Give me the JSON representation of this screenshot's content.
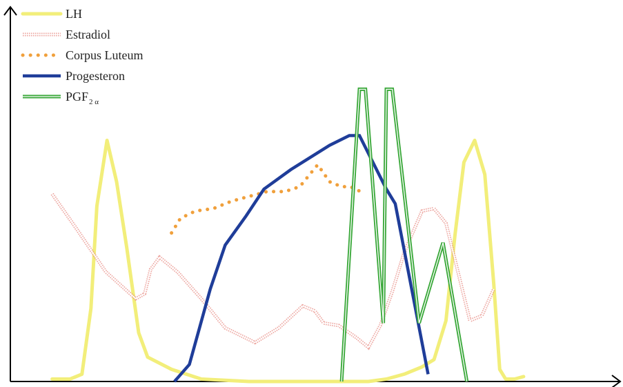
{
  "chart_data": {
    "type": "line",
    "title": "",
    "xlabel": "",
    "ylabel": "",
    "xlim": [
      0,
      100
    ],
    "ylim": [
      0,
      100
    ],
    "grid": false,
    "legend_placement": "top-left",
    "series": [
      {
        "name": "LH",
        "color": "#f2ee7a",
        "style": "thick-light",
        "points": [
          [
            7,
            1
          ],
          [
            10,
            1
          ],
          [
            12,
            3
          ],
          [
            13.5,
            30
          ],
          [
            14.5,
            72
          ],
          [
            16.2,
            99
          ],
          [
            17.8,
            82
          ],
          [
            19.5,
            55
          ],
          [
            21.5,
            20
          ],
          [
            23,
            10
          ],
          [
            27,
            5
          ],
          [
            32,
            1
          ],
          [
            40,
            0
          ],
          [
            50,
            0
          ],
          [
            60,
            0
          ],
          [
            63,
            1
          ],
          [
            66,
            3
          ],
          [
            69,
            6
          ],
          [
            71,
            9
          ],
          [
            73,
            25
          ],
          [
            74.5,
            60
          ],
          [
            76,
            90
          ],
          [
            77.8,
            99
          ],
          [
            79.5,
            85
          ],
          [
            81,
            40
          ],
          [
            82,
            5
          ],
          [
            83,
            1
          ],
          [
            84.5,
            1
          ],
          [
            86,
            2
          ]
        ]
      },
      {
        "name": "Estradiol",
        "color": "#e8918a",
        "style": "hollow-marker",
        "points": [
          [
            7,
            77
          ],
          [
            11,
            63
          ],
          [
            16,
            45
          ],
          [
            21,
            34
          ],
          [
            22.5,
            36
          ],
          [
            23.5,
            46
          ],
          [
            25,
            51
          ],
          [
            28,
            45
          ],
          [
            32,
            34
          ],
          [
            36,
            22
          ],
          [
            41,
            16
          ],
          [
            45,
            22
          ],
          [
            49,
            31
          ],
          [
            51,
            29
          ],
          [
            52.5,
            24
          ],
          [
            55,
            23
          ],
          [
            58,
            18
          ],
          [
            60,
            14
          ],
          [
            62,
            23
          ],
          [
            64,
            37
          ],
          [
            66,
            53
          ],
          [
            69,
            70
          ],
          [
            71,
            71
          ],
          [
            73,
            65
          ],
          [
            75,
            45
          ],
          [
            77,
            25
          ],
          [
            79,
            27
          ],
          [
            81,
            38
          ]
        ]
      },
      {
        "name": "Corpus Luteum",
        "color": "#f0a03c",
        "style": "dots",
        "points": [
          [
            27,
            61
          ],
          [
            28.5,
            67
          ],
          [
            31,
            70
          ],
          [
            34,
            71
          ],
          [
            37,
            74
          ],
          [
            40,
            76
          ],
          [
            43,
            78
          ],
          [
            46,
            78
          ],
          [
            48.5,
            80
          ],
          [
            50.5,
            86
          ],
          [
            51.5,
            89
          ],
          [
            53.5,
            82
          ],
          [
            55.5,
            80
          ],
          [
            57,
            80
          ],
          [
            59.5,
            77
          ]
        ]
      },
      {
        "name": "Progesteron",
        "color": "#1f3d99",
        "style": "thick",
        "points": [
          [
            27.5,
            0
          ],
          [
            30,
            7
          ],
          [
            33.5,
            38
          ],
          [
            36,
            56
          ],
          [
            39.5,
            68
          ],
          [
            42.5,
            79
          ],
          [
            47,
            87
          ],
          [
            53.5,
            97
          ],
          [
            56.8,
            101
          ],
          [
            58.5,
            101
          ],
          [
            63,
            79
          ],
          [
            64.5,
            73
          ],
          [
            70,
            3
          ]
        ]
      },
      {
        "name": "PGF2α",
        "color": "#3aa83a",
        "style": "double",
        "points": [
          [
            55.5,
            0
          ],
          [
            58.5,
            120
          ],
          [
            59.5,
            120
          ],
          [
            62.5,
            24
          ],
          [
            63,
            120
          ],
          [
            64,
            120
          ],
          [
            68.5,
            24
          ],
          [
            72.5,
            57
          ],
          [
            76.5,
            0
          ]
        ]
      }
    ],
    "legend": [
      {
        "label": "LH",
        "sub": ""
      },
      {
        "label": "Estradiol",
        "sub": ""
      },
      {
        "label": "Corpus Luteum",
        "sub": ""
      },
      {
        "label": "Progesteron",
        "sub": ""
      },
      {
        "label": "PGF",
        "sub": "2 α"
      }
    ]
  }
}
